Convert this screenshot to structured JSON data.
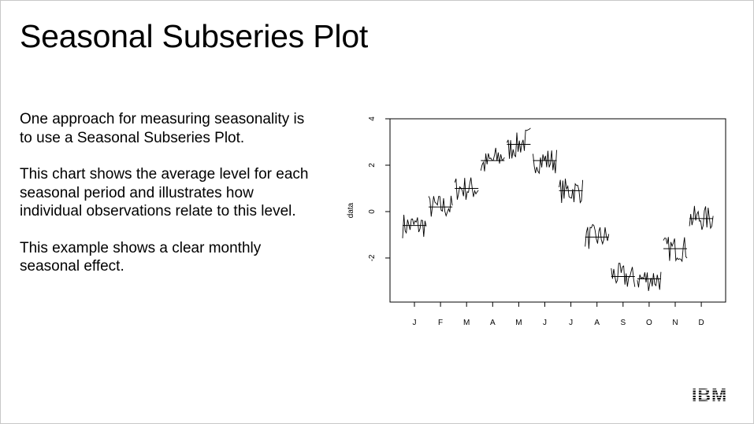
{
  "slide": {
    "title": "Seasonal Subseries Plot",
    "paragraphs": [
      "One approach for measuring seasonality is to use a Seasonal Subseries Plot.",
      "This chart shows the average level for each seasonal period and illustrates how individual observations relate to this level.",
      "This example shows a clear monthly seasonal effect."
    ],
    "logo": "IBM"
  },
  "chart_data": {
    "type": "line",
    "title": "",
    "xlabel": "",
    "ylabel": "data",
    "ylim": [
      -3.9,
      4.0
    ],
    "yticks": [
      "4",
      "2",
      "0",
      "-2"
    ],
    "ytick_values": [
      4,
      2,
      0,
      -2
    ],
    "categories": [
      "J",
      "F",
      "M",
      "A",
      "M",
      "J",
      "J",
      "A",
      "S",
      "O",
      "N",
      "D"
    ],
    "month_means": [
      -0.6,
      0.2,
      1.0,
      2.2,
      2.9,
      2.2,
      0.9,
      -1.1,
      -2.8,
      -2.9,
      -1.6,
      -0.3
    ],
    "observations_per_month": 20,
    "observation_spread": 0.55,
    "grid": false,
    "legend": "none"
  }
}
